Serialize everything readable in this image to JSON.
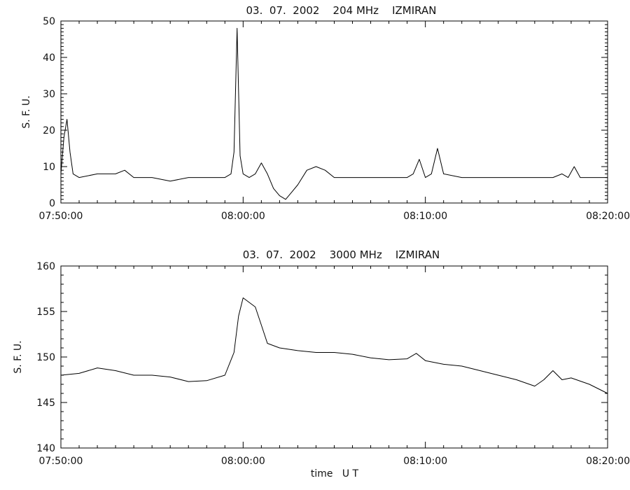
{
  "chart_data": [
    {
      "type": "line",
      "title": "03.  07.  2002    204 MHz    IZMIRAN",
      "ylabel": "S. F. U.",
      "xlabel": "",
      "xlim": [
        "07:50:00",
        "08:20:00"
      ],
      "ylim": [
        0,
        50
      ],
      "grid": false,
      "x_tick_labels": [
        "07:50:00",
        "08:00:00",
        "08:10:00",
        "08:20:00"
      ],
      "y_tick_labels": [
        "0",
        "10",
        "20",
        "30",
        "40",
        "50"
      ],
      "series": [
        {
          "color": "#000000",
          "x": [
            "07:50:00",
            "07:50:10",
            "07:50:20",
            "07:50:30",
            "07:50:40",
            "07:51:00",
            "07:52:00",
            "07:53:00",
            "07:53:30",
            "07:54:00",
            "07:55:00",
            "07:56:00",
            "07:57:00",
            "07:58:00",
            "07:59:00",
            "07:59:20",
            "07:59:30",
            "07:59:40",
            "07:59:50",
            "08:00:00",
            "08:00:20",
            "08:00:40",
            "08:01:00",
            "08:01:20",
            "08:01:40",
            "08:02:00",
            "08:02:20",
            "08:02:40",
            "08:03:00",
            "08:03:30",
            "08:04:00",
            "08:04:30",
            "08:05:00",
            "08:06:00",
            "08:07:00",
            "08:08:00",
            "08:09:00",
            "08:09:20",
            "08:09:40",
            "08:10:00",
            "08:10:20",
            "08:10:40",
            "08:11:00",
            "08:12:00",
            "08:13:00",
            "08:14:00",
            "08:15:00",
            "08:16:00",
            "08:17:00",
            "08:17:30",
            "08:17:50",
            "08:18:10",
            "08:18:30",
            "08:19:00",
            "08:20:00"
          ],
          "values": [
            8,
            18,
            23,
            14,
            8,
            7,
            8,
            8,
            9,
            7,
            7,
            6,
            7,
            7,
            7,
            8,
            14,
            48,
            13,
            8,
            7,
            8,
            11,
            8,
            4,
            2,
            1,
            3,
            5,
            9,
            10,
            9,
            7,
            7,
            7,
            7,
            7,
            8,
            12,
            7,
            8,
            15,
            8,
            7,
            7,
            7,
            7,
            7,
            7,
            8,
            7,
            10,
            7,
            7,
            7
          ]
        }
      ]
    },
    {
      "type": "line",
      "title": "03.  07.  2002    3000 MHz    IZMIRAN",
      "ylabel": "S. F. U.",
      "xlabel": "time   U T",
      "xlim": [
        "07:50:00",
        "08:20:00"
      ],
      "ylim": [
        140,
        160
      ],
      "grid": false,
      "x_tick_labels": [
        "07:50:00",
        "08:00:00",
        "08:10:00",
        "08:20:00"
      ],
      "y_tick_labels": [
        "140",
        "145",
        "150",
        "155",
        "160"
      ],
      "series": [
        {
          "color": "#000000",
          "x": [
            "07:50:00",
            "07:51:00",
            "07:52:00",
            "07:53:00",
            "07:54:00",
            "07:55:00",
            "07:56:00",
            "07:57:00",
            "07:58:00",
            "07:59:00",
            "07:59:30",
            "07:59:45",
            "08:00:00",
            "08:00:20",
            "08:00:40",
            "08:01:00",
            "08:01:20",
            "08:02:00",
            "08:03:00",
            "08:04:00",
            "08:05:00",
            "08:06:00",
            "08:07:00",
            "08:08:00",
            "08:09:00",
            "08:09:30",
            "08:10:00",
            "08:11:00",
            "08:12:00",
            "08:13:00",
            "08:14:00",
            "08:15:00",
            "08:16:00",
            "08:16:30",
            "08:17:00",
            "08:17:30",
            "08:18:00",
            "08:19:00",
            "08:20:00"
          ],
          "values": [
            148,
            148.2,
            148.8,
            148.5,
            148,
            148,
            147.8,
            147.3,
            147.4,
            148,
            150.5,
            154.5,
            156.5,
            156,
            155.5,
            153.5,
            151.5,
            151,
            150.7,
            150.5,
            150.5,
            150.3,
            149.9,
            149.7,
            149.8,
            150.4,
            149.6,
            149.2,
            149,
            148.5,
            148,
            147.5,
            146.8,
            147.5,
            148.5,
            147.5,
            147.7,
            147,
            146
          ]
        }
      ]
    }
  ]
}
